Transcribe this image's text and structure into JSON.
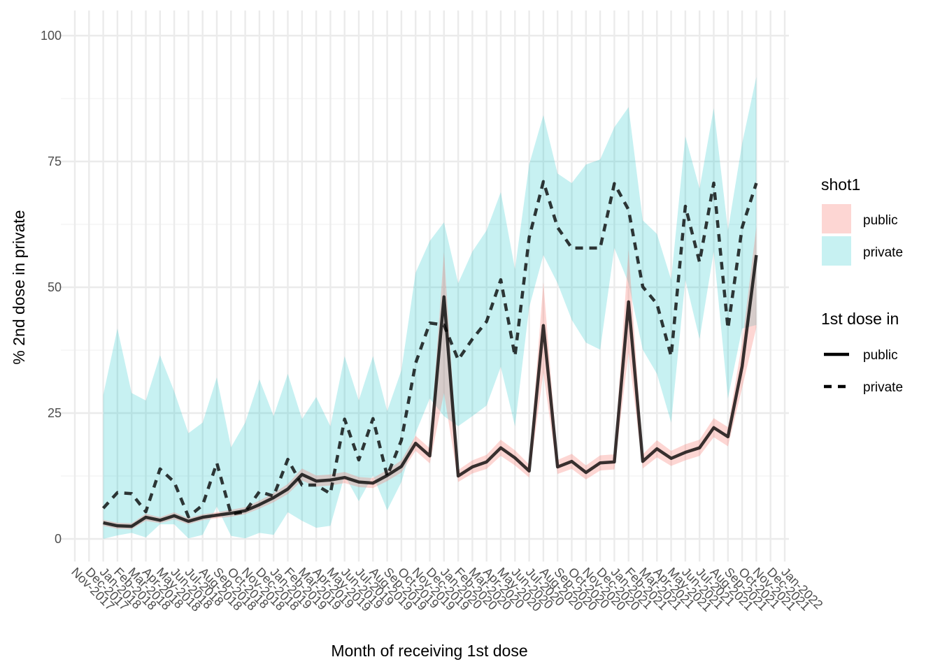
{
  "chart_data": {
    "type": "line",
    "x_label": "Month of receiving 1st dose",
    "y_label": "% 2nd dose in private",
    "categories": [
      "Nov-2017",
      "Dec-2017",
      "Jan-2018",
      "Feb-2018",
      "Mar-2018",
      "Apr-2018",
      "May-2018",
      "Jun-2018",
      "Jul-2018",
      "Aug-2018",
      "Sep-2018",
      "Oct-2018",
      "Nov-2018",
      "Dec-2018",
      "Jan-2019",
      "Feb-2019",
      "Mar-2019",
      "Apr-2019",
      "May-2019",
      "Jun-2019",
      "Jul-2019",
      "Aug-2019",
      "Sep-2019",
      "Oct-2019",
      "Nov-2019",
      "Dec-2019",
      "Jan-2020",
      "Feb-2020",
      "Mar-2020",
      "Apr-2020",
      "May-2020",
      "Jun-2020",
      "Jul-2020",
      "Aug-2020",
      "Sep-2020",
      "Oct-2020",
      "Nov-2020",
      "Dec-2020",
      "Jan-2021",
      "Feb-2021",
      "Mar-2021",
      "Apr-2021",
      "May-2021",
      "Jun-2021",
      "Jul-2021",
      "Aug-2021",
      "Sep-2021",
      "Oct-2021",
      "Nov-2021",
      "Dec-2021",
      "Jan-2022"
    ],
    "series": [
      {
        "name": "private",
        "color": "#00BFC4",
        "linetype": "dashed",
        "values": [
          null,
          null,
          6.1,
          9.2,
          9.0,
          5.4,
          13.9,
          11.3,
          4.4,
          6.7,
          15.1,
          4.9,
          5.4,
          9.4,
          8.5,
          15.8,
          10.7,
          10.7,
          9.0,
          23.8,
          15.7,
          23.9,
          12.5,
          19.6,
          34.9,
          42.9,
          42.5,
          35.6,
          39.7,
          43.2,
          51.5,
          36.3,
          59.9,
          71.0,
          61.9,
          57.8,
          57.8,
          57.8,
          70.6,
          65.4,
          50.1,
          46.7,
          36.3,
          66.1,
          55.0,
          70.7,
          41.8,
          61.9,
          70.7,
          null,
          null
        ],
        "lower": [
          null,
          null,
          0,
          0.7,
          1.2,
          0.3,
          2.9,
          2.9,
          0.1,
          0.8,
          6.4,
          0.6,
          0.1,
          1.2,
          0.8,
          5.3,
          3.6,
          2.2,
          2.6,
          12.6,
          7.5,
          12.6,
          5.7,
          11.3,
          21.0,
          27.9,
          24.4,
          22.4,
          24.4,
          26.5,
          34.2,
          22.4,
          46.0,
          56.4,
          50.8,
          43.5,
          39.0,
          37.6,
          57.8,
          50.8,
          37.6,
          32.8,
          23.1,
          51.5,
          39.7,
          57.1,
          27.9,
          41.8,
          42.5,
          null,
          null
        ],
        "upper": [
          null,
          null,
          28.6,
          41.8,
          29.0,
          27.5,
          36.5,
          29.3,
          21.0,
          23.1,
          32.1,
          18.2,
          23.1,
          31.7,
          24.4,
          32.8,
          23.8,
          28.2,
          22.4,
          36.3,
          27.5,
          36.3,
          25.4,
          33.5,
          52.9,
          59.2,
          62.9,
          50.8,
          57.1,
          61.3,
          68.9,
          53.6,
          74.4,
          84.2,
          72.6,
          70.7,
          74.4,
          75.4,
          81.8,
          85.8,
          63.3,
          60.6,
          51.5,
          80.0,
          69.6,
          85.6,
          61.3,
          78.6,
          91.8,
          null,
          null
        ]
      },
      {
        "name": "public",
        "color": "#F8766D",
        "linetype": "solid",
        "values": [
          null,
          null,
          3.2,
          2.6,
          2.5,
          4.3,
          3.7,
          4.6,
          3.5,
          4.3,
          4.7,
          5.1,
          5.6,
          6.8,
          8.2,
          9.9,
          12.8,
          11.5,
          11.7,
          12.2,
          11.3,
          11.1,
          12.6,
          14.4,
          19.0,
          16.5,
          48.1,
          12.5,
          14.3,
          15.3,
          18.1,
          16.1,
          13.5,
          42.4,
          14.3,
          15.4,
          13.2,
          15.1,
          15.3,
          47.1,
          15.4,
          17.9,
          16.0,
          17.2,
          18.1,
          22.1,
          20.3,
          34.3,
          56.4,
          null,
          null
        ],
        "lower": [
          null,
          null,
          2.6,
          2.0,
          1.9,
          3.6,
          3.1,
          3.9,
          2.9,
          3.7,
          4.1,
          4.4,
          4.9,
          6.0,
          7.3,
          8.9,
          11.6,
          10.4,
          10.6,
          11.1,
          10.3,
          10.1,
          11.5,
          13.2,
          17.5,
          15.0,
          29.0,
          11.3,
          13.0,
          13.9,
          16.5,
          14.6,
          12.2,
          33.0,
          12.9,
          13.9,
          11.8,
          13.6,
          13.8,
          37.0,
          14.0,
          16.2,
          14.5,
          15.6,
          16.5,
          20.2,
          18.4,
          30.0,
          42.0,
          null,
          null
        ],
        "upper": [
          null,
          null,
          3.8,
          3.2,
          3.1,
          5.0,
          4.3,
          5.3,
          4.1,
          4.9,
          5.3,
          5.8,
          6.3,
          7.6,
          9.1,
          10.9,
          14.0,
          12.6,
          12.8,
          13.3,
          12.3,
          12.1,
          13.7,
          15.6,
          20.5,
          18.0,
          57.0,
          13.7,
          15.6,
          16.7,
          19.7,
          17.6,
          14.8,
          51.0,
          15.7,
          16.9,
          14.6,
          16.6,
          16.8,
          57.5,
          16.8,
          19.6,
          17.5,
          18.8,
          19.7,
          24.0,
          22.2,
          39.0,
          62.0,
          null,
          null
        ]
      }
    ],
    "legend_fill_title": "shot1",
    "legend_linetype_title": "1st dose in",
    "ylim": [
      -4.5,
      105
    ],
    "yticks": [
      0,
      25,
      50,
      75,
      100
    ],
    "y_minor_ticks": [
      12.5,
      37.5,
      62.5,
      87.5
    ],
    "grid": true
  }
}
